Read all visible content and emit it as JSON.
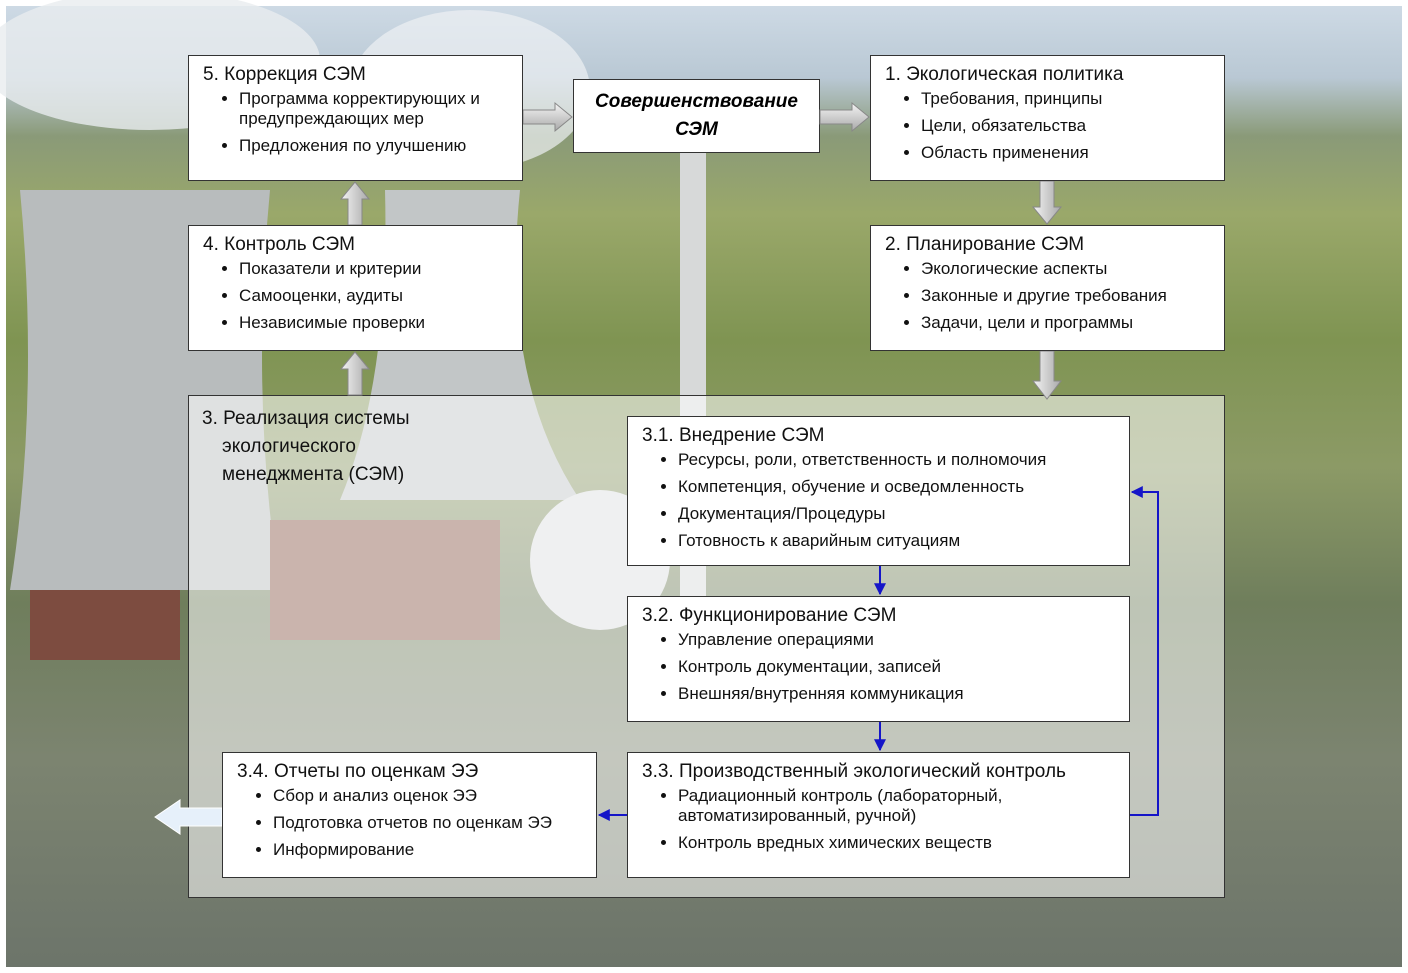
{
  "center": {
    "title": "Совершенствование СЭМ"
  },
  "box5": {
    "title": "5. Коррекция СЭМ",
    "items": [
      "Программа корректирующих и предупреждающих мер",
      "Предложения по улучшению"
    ]
  },
  "box1": {
    "title": "1. Экологическая политика",
    "items": [
      "Требования, принципы",
      "Цели, обязательства",
      "Область применения"
    ]
  },
  "box4": {
    "title": "4. Контроль СЭМ",
    "items": [
      "Показатели и критерии",
      "Самооценки, аудиты",
      "Независимые проверки"
    ]
  },
  "box2": {
    "title": "2. Планирование СЭМ",
    "items": [
      "Экологические аспекты",
      "Законные и другие требования",
      "Задачи,  цели и программы"
    ]
  },
  "box3": {
    "title": "3. Реализация системы экологического менеджмента (СЭМ)"
  },
  "box31": {
    "title": "3.1. Внедрение СЭМ",
    "items": [
      "Ресурсы, роли, ответственность и полномочия",
      "Компетенция, обучение и осведомленность",
      "Документация/Процедуры",
      "Готовность к аварийным ситуациям"
    ]
  },
  "box32": {
    "title": "3.2. Функционирование СЭМ",
    "items": [
      "Управление операциями",
      "Контроль документации, записей",
      "Внешняя/внутренняя коммуникация"
    ]
  },
  "box33": {
    "title": "3.3. Производственный экологический контроль",
    "items": [
      "Радиационный контроль (лабораторный, автоматизированный, ручной)",
      "Контроль вредных химических веществ"
    ]
  },
  "box34": {
    "title": "3.4. Отчеты по оценкам ЭЭ",
    "items": [
      "Сбор и анализ оценок ЭЭ",
      "Подготовка отчетов по оценкам ЭЭ",
      "Информирование"
    ]
  }
}
